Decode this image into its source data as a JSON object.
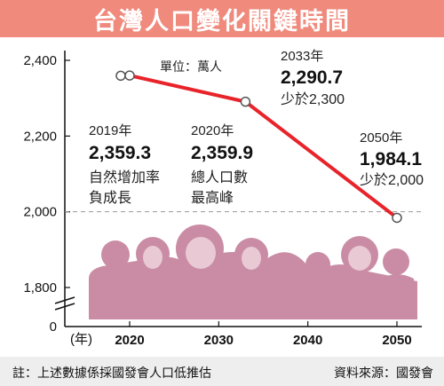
{
  "title": "台灣人口變化關鍵時間",
  "unit_label": "單位：萬人",
  "x_axis_unit": "(年)",
  "footer": {
    "note": "註：上述數據係採國發會人口低推估",
    "source": "資料來源：國發會"
  },
  "colors": {
    "title_bg": "#ef8a7d",
    "line": "#e8232a",
    "silhouette": "#c98ca4",
    "footer_bg": "#eeeeee"
  },
  "annotations": [
    {
      "year": "2019年",
      "value": "2,359.3",
      "desc1": "自然增加率",
      "desc2": "負成長"
    },
    {
      "year": "2020年",
      "value": "2,359.9",
      "desc1": "總人口數",
      "desc2": "最高峰"
    },
    {
      "year": "2033年",
      "value": "2,290.7",
      "desc1": "少於2,300",
      "desc2": ""
    },
    {
      "year": "2050年",
      "value": "1,984.1",
      "desc1": "少於2,000",
      "desc2": ""
    }
  ],
  "chart_data": {
    "type": "line",
    "title": "台灣人口變化關鍵時間",
    "xlabel": "(年)",
    "ylabel": "單位：萬人",
    "x": [
      2019,
      2020,
      2033,
      2050
    ],
    "series": [
      {
        "values": [
          2359.3,
          2359.9,
          2290.7,
          1984.1
        ]
      }
    ],
    "x_ticks": [
      "2020",
      "2030",
      "2040",
      "2050"
    ],
    "y_ticks": [
      "2,400",
      "2,200",
      "2,000",
      "1,800",
      "0"
    ],
    "reference_line": 2000,
    "grid": false
  }
}
